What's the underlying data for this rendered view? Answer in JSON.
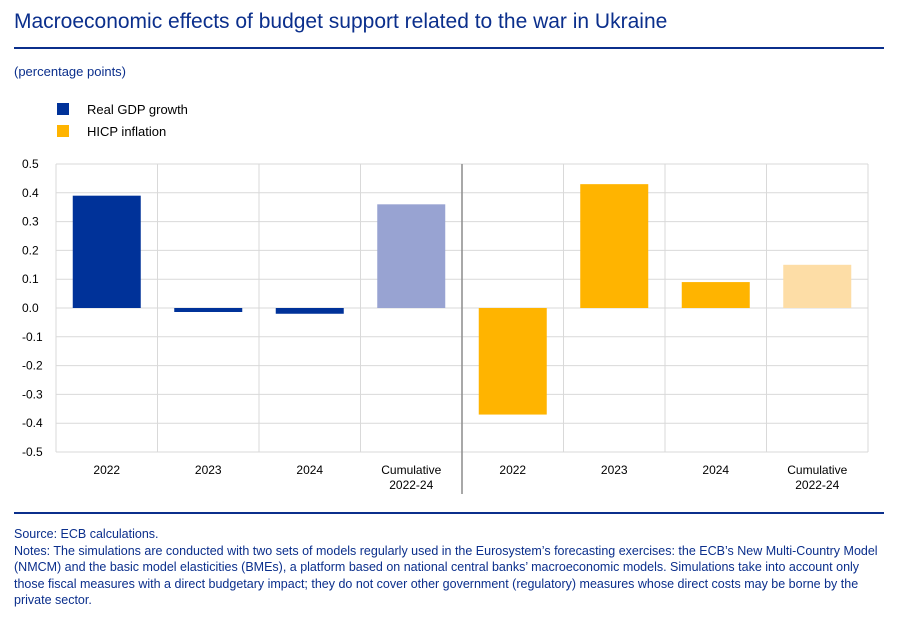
{
  "title": "Macroeconomic effects of budget support related to the war in Ukraine",
  "units": "(percentage points)",
  "legend": [
    {
      "label": "Real GDP growth",
      "color": "#003299"
    },
    {
      "label": "HICP inflation",
      "color": "#FFB400"
    }
  ],
  "chart_data": {
    "type": "bar",
    "ylim": [
      -0.5,
      0.5
    ],
    "yticks": [
      0.5,
      0.4,
      0.3,
      0.2,
      0.1,
      0.0,
      -0.1,
      -0.2,
      -0.3,
      -0.4,
      -0.5
    ],
    "ytick_labels": [
      "0.5",
      "0.4",
      "0.3",
      "0.2",
      "0.1",
      "0.0",
      "-0.1",
      "-0.2",
      "-0.3",
      "-0.4",
      "-0.5"
    ],
    "grid": true,
    "legend_position": "top-left",
    "groups": [
      {
        "series": "Real GDP growth",
        "categories": [
          [
            "2022"
          ],
          [
            "2023"
          ],
          [
            "2024"
          ],
          [
            "Cumulative",
            "2022-24"
          ]
        ],
        "values": [
          0.39,
          -0.01,
          -0.02,
          0.36
        ],
        "colors": [
          "#003299",
          "#003299",
          "#003299",
          "#98A3D2"
        ]
      },
      {
        "series": "HICP inflation",
        "categories": [
          [
            "2022"
          ],
          [
            "2023"
          ],
          [
            "2024"
          ],
          [
            "Cumulative",
            "2022-24"
          ]
        ],
        "values": [
          -0.37,
          0.43,
          0.09,
          0.15
        ],
        "colors": [
          "#FFB400",
          "#FFB400",
          "#FFB400",
          "#FDDDA6"
        ]
      }
    ]
  },
  "source": "Source: ECB calculations.",
  "notes": "Notes: The simulations are conducted with two sets of models regularly used in the Eurosystem’s forecasting exercises: the ECB’s New Multi-Country Model (NMCM) and the basic model elasticities (BMEs), a platform based on national central banks’ macroeconomic models. Simulations take into account only those fiscal measures with a direct budgetary impact; they do not cover other government (regulatory) measures whose direct costs may be borne by the private sector."
}
